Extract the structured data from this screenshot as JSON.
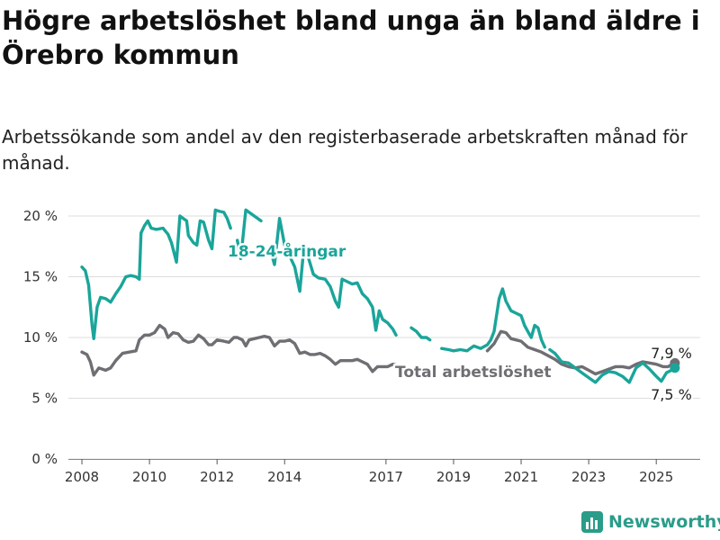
{
  "title": "Högre arbetslöshet bland unga än bland äldre i Örebro kommun",
  "subtitle": "Arbetssökande som andel av den registerbaserade arbetskraften månad för månad.",
  "brand": {
    "name": "Newsworthy"
  },
  "chart_data": {
    "type": "line",
    "title": "Högre arbetslöshet bland unga än bland äldre i Örebro kommun",
    "subtitle": "Arbetssökande som andel av den registerbaserade arbetskraften månad för månad.",
    "xlabel": "",
    "ylabel": "",
    "ylim": [
      0,
      20
    ],
    "yticks": [
      {
        "value": 0,
        "label": "0 %"
      },
      {
        "value": 5,
        "label": "5 %"
      },
      {
        "value": 10,
        "label": "10 %"
      },
      {
        "value": 15,
        "label": "15 %"
      },
      {
        "value": 20,
        "label": "20 %"
      }
    ],
    "xlim": [
      2007.6,
      2026.3
    ],
    "xticks": [
      {
        "value": 2008,
        "label": "2008"
      },
      {
        "value": 2010,
        "label": "2010"
      },
      {
        "value": 2012,
        "label": "2012"
      },
      {
        "value": 2014,
        "label": "2014"
      },
      {
        "value": 2017,
        "label": "2017"
      },
      {
        "value": 2019,
        "label": "2019"
      },
      {
        "value": 2021,
        "label": "2021"
      },
      {
        "value": 2023,
        "label": "2023"
      },
      {
        "value": 2025,
        "label": "2025"
      }
    ],
    "grid": true,
    "series": [
      {
        "name": "18-24-åringar",
        "color": "#1aa59a",
        "end_label": "7,5 %",
        "points": [
          [
            2008.0,
            15.8
          ],
          [
            2008.1,
            15.5
          ],
          [
            2008.2,
            14.3
          ],
          [
            2008.3,
            11.0
          ],
          [
            2008.35,
            9.9
          ],
          [
            2008.45,
            12.5
          ],
          [
            2008.55,
            13.3
          ],
          [
            2008.7,
            13.2
          ],
          [
            2008.85,
            12.9
          ],
          [
            2009.0,
            13.6
          ],
          [
            2009.15,
            14.2
          ],
          [
            2009.3,
            15.0
          ],
          [
            2009.45,
            15.1
          ],
          [
            2009.6,
            15.0
          ],
          [
            2009.7,
            14.8
          ],
          [
            2009.75,
            18.6
          ],
          [
            2009.85,
            19.2
          ],
          [
            2009.95,
            19.6
          ],
          [
            2010.05,
            19.0
          ],
          [
            2010.2,
            18.9
          ],
          [
            2010.4,
            19.0
          ],
          [
            2010.55,
            18.5
          ],
          [
            2010.65,
            17.8
          ],
          [
            2010.8,
            16.2
          ],
          [
            2010.9,
            20.0
          ],
          [
            2011.0,
            19.8
          ],
          [
            2011.1,
            19.6
          ],
          [
            2011.15,
            18.4
          ],
          [
            2011.3,
            17.8
          ],
          [
            2011.4,
            17.6
          ],
          [
            2011.5,
            19.6
          ],
          [
            2011.6,
            19.5
          ],
          [
            2011.75,
            18.0
          ],
          [
            2011.85,
            17.3
          ],
          [
            2011.95,
            20.5
          ],
          [
            2012.05,
            20.4
          ],
          [
            2012.2,
            20.3
          ],
          [
            2012.3,
            19.8
          ],
          [
            2012.4,
            19.0
          ],
          [
            2012.6,
            18.0
          ],
          [
            2012.7,
            16.5
          ],
          [
            2012.85,
            20.5
          ],
          [
            2013.0,
            20.2
          ],
          [
            2013.3,
            19.6
          ],
          [
            2013.45,
            19.2
          ],
          [
            2013.55,
            17.5
          ],
          [
            2013.7,
            16.0
          ],
          [
            2013.85,
            19.8
          ],
          [
            2014.0,
            17.6
          ],
          [
            2014.15,
            16.7
          ],
          [
            2014.3,
            15.8
          ],
          [
            2014.45,
            13.8
          ],
          [
            2014.55,
            16.8
          ],
          [
            2014.7,
            16.6
          ],
          [
            2014.85,
            15.2
          ],
          [
            2015.0,
            14.9
          ],
          [
            2015.2,
            14.8
          ],
          [
            2015.35,
            14.2
          ],
          [
            2015.5,
            13.0
          ],
          [
            2015.6,
            12.5
          ],
          [
            2015.7,
            14.8
          ],
          [
            2015.85,
            14.6
          ],
          [
            2016.0,
            14.4
          ],
          [
            2016.15,
            14.5
          ],
          [
            2016.3,
            13.6
          ],
          [
            2016.45,
            13.2
          ],
          [
            2016.6,
            12.5
          ],
          [
            2016.7,
            10.6
          ],
          [
            2016.8,
            12.2
          ],
          [
            2016.9,
            11.5
          ],
          [
            2017.05,
            11.2
          ],
          [
            2017.2,
            10.7
          ],
          [
            2017.3,
            10.2
          ],
          [
            2017.45,
            9.8
          ],
          [
            2017.6,
            9.5
          ],
          [
            2017.75,
            10.8
          ],
          [
            2017.9,
            10.5
          ],
          [
            2018.05,
            10.0
          ],
          [
            2018.2,
            10.0
          ],
          [
            2018.3,
            9.8
          ],
          [
            2018.4,
            9.6
          ],
          [
            2018.5,
            9.2
          ],
          [
            2018.65,
            9.1
          ],
          [
            2018.85,
            9.0
          ],
          [
            2019.0,
            8.9
          ],
          [
            2019.2,
            9.0
          ],
          [
            2019.4,
            8.9
          ],
          [
            2019.6,
            9.3
          ],
          [
            2019.8,
            9.1
          ],
          [
            2020.0,
            9.4
          ],
          [
            2020.1,
            9.8
          ],
          [
            2020.2,
            10.5
          ],
          [
            2020.35,
            13.2
          ],
          [
            2020.45,
            14.0
          ],
          [
            2020.55,
            13.0
          ],
          [
            2020.7,
            12.2
          ],
          [
            2020.85,
            12.0
          ],
          [
            2021.0,
            11.8
          ],
          [
            2021.1,
            11.0
          ],
          [
            2021.2,
            10.5
          ],
          [
            2021.3,
            10.0
          ],
          [
            2021.4,
            11.0
          ],
          [
            2021.5,
            10.8
          ],
          [
            2021.6,
            9.8
          ],
          [
            2021.7,
            9.2
          ],
          [
            2021.85,
            9.0
          ],
          [
            2022.0,
            8.7
          ],
          [
            2022.2,
            8.0
          ],
          [
            2022.4,
            7.9
          ],
          [
            2022.6,
            7.5
          ],
          [
            2022.8,
            7.1
          ],
          [
            2023.0,
            6.7
          ],
          [
            2023.2,
            6.3
          ],
          [
            2023.4,
            6.9
          ],
          [
            2023.6,
            7.2
          ],
          [
            2023.8,
            7.1
          ],
          [
            2024.0,
            6.8
          ],
          [
            2024.2,
            6.3
          ],
          [
            2024.4,
            7.5
          ],
          [
            2024.6,
            7.9
          ],
          [
            2024.8,
            7.4
          ],
          [
            2025.0,
            6.8
          ],
          [
            2025.15,
            6.4
          ],
          [
            2025.3,
            7.1
          ],
          [
            2025.45,
            7.3
          ],
          [
            2025.55,
            7.5
          ]
        ],
        "gaps": [
          [
            2012.4,
            2012.6
          ],
          [
            2013.3,
            2013.55
          ],
          [
            2017.3,
            2017.75
          ],
          [
            2018.3,
            2018.65
          ],
          [
            2021.7,
            2021.85
          ]
        ]
      },
      {
        "name": "Total arbetslöshet",
        "color": "#6e6e73",
        "end_label": "7,9 %",
        "points": [
          [
            2008.0,
            8.8
          ],
          [
            2008.15,
            8.6
          ],
          [
            2008.25,
            8.0
          ],
          [
            2008.35,
            6.9
          ],
          [
            2008.5,
            7.5
          ],
          [
            2008.7,
            7.3
          ],
          [
            2008.85,
            7.5
          ],
          [
            2009.0,
            8.1
          ],
          [
            2009.2,
            8.7
          ],
          [
            2009.4,
            8.8
          ],
          [
            2009.6,
            8.9
          ],
          [
            2009.7,
            9.8
          ],
          [
            2009.85,
            10.2
          ],
          [
            2010.0,
            10.2
          ],
          [
            2010.15,
            10.4
          ],
          [
            2010.3,
            11.0
          ],
          [
            2010.45,
            10.7
          ],
          [
            2010.55,
            10.0
          ],
          [
            2010.7,
            10.4
          ],
          [
            2010.85,
            10.3
          ],
          [
            2011.0,
            9.8
          ],
          [
            2011.15,
            9.6
          ],
          [
            2011.3,
            9.7
          ],
          [
            2011.45,
            10.2
          ],
          [
            2011.6,
            9.9
          ],
          [
            2011.75,
            9.4
          ],
          [
            2011.85,
            9.4
          ],
          [
            2012.0,
            9.8
          ],
          [
            2012.2,
            9.7
          ],
          [
            2012.35,
            9.6
          ],
          [
            2012.5,
            10.0
          ],
          [
            2012.6,
            10.0
          ],
          [
            2012.75,
            9.8
          ],
          [
            2012.85,
            9.3
          ],
          [
            2012.95,
            9.8
          ],
          [
            2013.1,
            9.9
          ],
          [
            2013.25,
            10.0
          ],
          [
            2013.4,
            10.1
          ],
          [
            2013.55,
            10.0
          ],
          [
            2013.7,
            9.3
          ],
          [
            2013.85,
            9.7
          ],
          [
            2014.0,
            9.7
          ],
          [
            2014.15,
            9.8
          ],
          [
            2014.3,
            9.5
          ],
          [
            2014.45,
            8.7
          ],
          [
            2014.6,
            8.8
          ],
          [
            2014.75,
            8.6
          ],
          [
            2014.9,
            8.6
          ],
          [
            2015.05,
            8.7
          ],
          [
            2015.2,
            8.5
          ],
          [
            2015.35,
            8.2
          ],
          [
            2015.5,
            7.8
          ],
          [
            2015.65,
            8.1
          ],
          [
            2015.8,
            8.1
          ],
          [
            2016.0,
            8.1
          ],
          [
            2016.15,
            8.2
          ],
          [
            2016.3,
            8.0
          ],
          [
            2016.45,
            7.8
          ],
          [
            2016.6,
            7.2
          ],
          [
            2016.75,
            7.6
          ],
          [
            2016.9,
            7.6
          ],
          [
            2017.05,
            7.6
          ],
          [
            2017.2,
            7.8
          ],
          [
            2017.35,
            7.7
          ],
          [
            2018.0,
            7.6
          ],
          [
            2020.0,
            8.9
          ],
          [
            2020.2,
            9.5
          ],
          [
            2020.4,
            10.5
          ],
          [
            2020.55,
            10.4
          ],
          [
            2020.7,
            9.9
          ],
          [
            2020.85,
            9.8
          ],
          [
            2021.0,
            9.7
          ],
          [
            2021.2,
            9.2
          ],
          [
            2021.4,
            9.0
          ],
          [
            2021.6,
            8.8
          ],
          [
            2021.8,
            8.5
          ],
          [
            2022.0,
            8.2
          ],
          [
            2022.2,
            7.8
          ],
          [
            2022.4,
            7.6
          ],
          [
            2022.6,
            7.5
          ],
          [
            2022.8,
            7.6
          ],
          [
            2023.0,
            7.3
          ],
          [
            2023.2,
            7.0
          ],
          [
            2023.4,
            7.2
          ],
          [
            2023.6,
            7.4
          ],
          [
            2023.8,
            7.6
          ],
          [
            2024.0,
            7.6
          ],
          [
            2024.2,
            7.5
          ],
          [
            2024.4,
            7.8
          ],
          [
            2024.6,
            8.0
          ],
          [
            2024.8,
            7.9
          ],
          [
            2025.0,
            7.8
          ],
          [
            2025.2,
            7.6
          ],
          [
            2025.35,
            7.6
          ],
          [
            2025.55,
            7.9
          ]
        ],
        "gaps": [
          [
            2017.35,
            2020.0
          ]
        ]
      }
    ],
    "annotations": [
      {
        "text": "18-24-åringar",
        "series": "18-24-åringar"
      },
      {
        "text": "Total arbetslöshet",
        "series": "Total arbetslöshet"
      }
    ]
  }
}
